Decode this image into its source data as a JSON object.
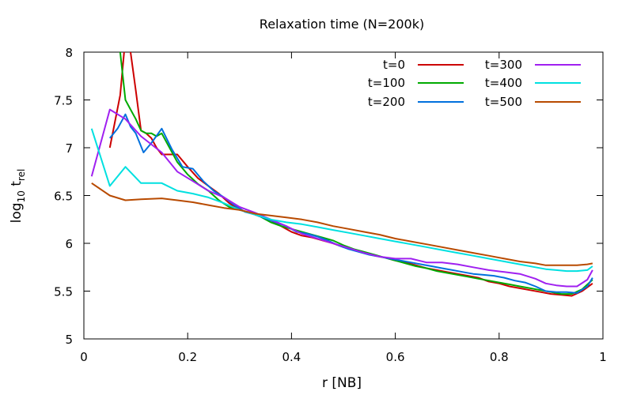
{
  "chart_data": {
    "type": "line",
    "title": "Relaxation time (N=200k)",
    "xlabel": "r [NB]",
    "ylabel": {
      "base": "log",
      "base_sub": "10",
      "var": " t",
      "var_sub": "rel"
    },
    "xlim": [
      0,
      1
    ],
    "ylim": [
      5,
      8
    ],
    "x_ticks": [
      "0",
      "0.2",
      "0.4",
      "0.6",
      "0.8",
      "1"
    ],
    "y_ticks": [
      "5",
      "5.5",
      "6",
      "6.5",
      "7",
      "7.5",
      "8"
    ],
    "grid": false,
    "legend_position": "top-right",
    "series": [
      {
        "name": "t=0",
        "color": "#cc0000",
        "x": [
          0.05,
          0.07,
          0.08,
          0.09,
          0.1,
          0.11,
          0.12,
          0.13,
          0.14,
          0.15,
          0.16,
          0.18,
          0.2,
          0.22,
          0.24,
          0.26,
          0.28,
          0.3,
          0.32,
          0.34,
          0.36,
          0.38,
          0.4,
          0.42,
          0.44,
          0.46,
          0.48,
          0.5,
          0.52,
          0.54,
          0.56,
          0.58,
          0.6,
          0.62,
          0.64,
          0.66,
          0.68,
          0.7,
          0.72,
          0.74,
          0.76,
          0.78,
          0.8,
          0.82,
          0.84,
          0.86,
          0.88,
          0.9,
          0.92,
          0.94,
          0.96,
          0.98
        ],
        "y": [
          7.0,
          7.55,
          8.15,
          8.0,
          7.6,
          7.18,
          7.15,
          7.1,
          7.0,
          6.93,
          6.93,
          6.93,
          6.8,
          6.68,
          6.6,
          6.52,
          6.42,
          6.35,
          6.32,
          6.28,
          6.24,
          6.18,
          6.12,
          6.08,
          6.06,
          6.03,
          6.0,
          5.96,
          5.93,
          5.9,
          5.87,
          5.85,
          5.82,
          5.8,
          5.77,
          5.74,
          5.72,
          5.7,
          5.68,
          5.66,
          5.64,
          5.6,
          5.58,
          5.55,
          5.53,
          5.51,
          5.49,
          5.47,
          5.46,
          5.45,
          5.5,
          5.58
        ]
      },
      {
        "name": "t=100",
        "color": "#00aa00",
        "x": [
          0.07,
          0.08,
          0.09,
          0.1,
          0.11,
          0.12,
          0.13,
          0.14,
          0.15,
          0.16,
          0.18,
          0.2,
          0.22,
          0.24,
          0.26,
          0.28,
          0.3,
          0.32,
          0.34,
          0.36,
          0.38,
          0.4,
          0.42,
          0.44,
          0.46,
          0.48,
          0.5,
          0.52,
          0.54,
          0.56,
          0.58,
          0.6,
          0.62,
          0.64,
          0.66,
          0.68,
          0.7,
          0.72,
          0.74,
          0.76,
          0.78,
          0.8,
          0.82,
          0.84,
          0.86,
          0.88,
          0.9,
          0.92,
          0.94,
          0.96,
          0.98
        ],
        "y": [
          8.0,
          7.5,
          7.4,
          7.3,
          7.18,
          7.15,
          7.15,
          7.12,
          7.15,
          7.05,
          6.85,
          6.72,
          6.62,
          6.55,
          6.45,
          6.38,
          6.35,
          6.32,
          6.28,
          6.22,
          6.18,
          6.15,
          6.12,
          6.09,
          6.06,
          6.03,
          5.98,
          5.94,
          5.91,
          5.88,
          5.85,
          5.82,
          5.79,
          5.76,
          5.74,
          5.71,
          5.69,
          5.67,
          5.65,
          5.63,
          5.61,
          5.59,
          5.57,
          5.55,
          5.53,
          5.51,
          5.49,
          5.47,
          5.47,
          5.52,
          5.62
        ]
      },
      {
        "name": "t=200",
        "color": "#0070dd",
        "x": [
          0.05,
          0.065,
          0.08,
          0.09,
          0.1,
          0.115,
          0.13,
          0.15,
          0.17,
          0.19,
          0.21,
          0.23,
          0.25,
          0.27,
          0.29,
          0.31,
          0.33,
          0.35,
          0.37,
          0.39,
          0.41,
          0.43,
          0.45,
          0.47,
          0.49,
          0.51,
          0.53,
          0.55,
          0.57,
          0.59,
          0.61,
          0.63,
          0.65,
          0.67,
          0.69,
          0.71,
          0.73,
          0.75,
          0.77,
          0.79,
          0.81,
          0.83,
          0.85,
          0.87,
          0.89,
          0.91,
          0.93,
          0.95,
          0.97,
          0.98
        ],
        "y": [
          7.1,
          7.2,
          7.35,
          7.22,
          7.15,
          6.95,
          7.05,
          7.2,
          6.98,
          6.8,
          6.78,
          6.65,
          6.55,
          6.48,
          6.4,
          6.33,
          6.3,
          6.26,
          6.22,
          6.18,
          6.12,
          6.1,
          6.07,
          6.03,
          5.98,
          5.94,
          5.91,
          5.88,
          5.86,
          5.84,
          5.82,
          5.8,
          5.78,
          5.76,
          5.74,
          5.72,
          5.7,
          5.68,
          5.67,
          5.66,
          5.64,
          5.61,
          5.59,
          5.55,
          5.5,
          5.49,
          5.49,
          5.48,
          5.55,
          5.64
        ]
      },
      {
        "name": "t=300",
        "color": "#a020f0",
        "x": [
          0.015,
          0.05,
          0.08,
          0.11,
          0.15,
          0.18,
          0.21,
          0.24,
          0.27,
          0.3,
          0.33,
          0.36,
          0.39,
          0.42,
          0.45,
          0.48,
          0.51,
          0.54,
          0.57,
          0.6,
          0.63,
          0.66,
          0.69,
          0.72,
          0.75,
          0.78,
          0.81,
          0.84,
          0.87,
          0.89,
          0.91,
          0.93,
          0.95,
          0.97,
          0.98
        ],
        "y": [
          6.7,
          7.4,
          7.3,
          7.12,
          6.95,
          6.75,
          6.65,
          6.55,
          6.48,
          6.38,
          6.32,
          6.25,
          6.18,
          6.1,
          6.05,
          6.0,
          5.95,
          5.9,
          5.86,
          5.84,
          5.84,
          5.8,
          5.8,
          5.78,
          5.75,
          5.72,
          5.7,
          5.68,
          5.63,
          5.58,
          5.56,
          5.55,
          5.55,
          5.62,
          5.72
        ]
      },
      {
        "name": "t=400",
        "color": "#00e0e0",
        "x": [
          0.015,
          0.05,
          0.08,
          0.11,
          0.15,
          0.18,
          0.21,
          0.24,
          0.27,
          0.3,
          0.33,
          0.36,
          0.39,
          0.42,
          0.45,
          0.48,
          0.51,
          0.54,
          0.57,
          0.6,
          0.63,
          0.66,
          0.69,
          0.72,
          0.75,
          0.78,
          0.81,
          0.84,
          0.87,
          0.89,
          0.91,
          0.93,
          0.95,
          0.97,
          0.98
        ],
        "y": [
          7.2,
          6.6,
          6.8,
          6.63,
          6.63,
          6.55,
          6.52,
          6.48,
          6.42,
          6.35,
          6.3,
          6.25,
          6.22,
          6.2,
          6.17,
          6.14,
          6.11,
          6.08,
          6.05,
          6.02,
          5.99,
          5.96,
          5.93,
          5.9,
          5.87,
          5.84,
          5.81,
          5.78,
          5.75,
          5.73,
          5.72,
          5.71,
          5.71,
          5.72,
          5.76
        ]
      },
      {
        "name": "t=500",
        "color": "#b84a00",
        "x": [
          0.015,
          0.05,
          0.08,
          0.11,
          0.15,
          0.18,
          0.21,
          0.24,
          0.27,
          0.3,
          0.33,
          0.36,
          0.39,
          0.42,
          0.45,
          0.48,
          0.51,
          0.54,
          0.57,
          0.6,
          0.63,
          0.66,
          0.69,
          0.72,
          0.75,
          0.78,
          0.81,
          0.84,
          0.87,
          0.89,
          0.91,
          0.93,
          0.95,
          0.97,
          0.98
        ],
        "y": [
          6.63,
          6.5,
          6.45,
          6.46,
          6.47,
          6.45,
          6.43,
          6.4,
          6.37,
          6.35,
          6.31,
          6.29,
          6.27,
          6.25,
          6.22,
          6.18,
          6.15,
          6.12,
          6.09,
          6.05,
          6.02,
          5.99,
          5.96,
          5.93,
          5.9,
          5.87,
          5.84,
          5.81,
          5.79,
          5.77,
          5.77,
          5.77,
          5.77,
          5.78,
          5.79
        ]
      }
    ]
  }
}
